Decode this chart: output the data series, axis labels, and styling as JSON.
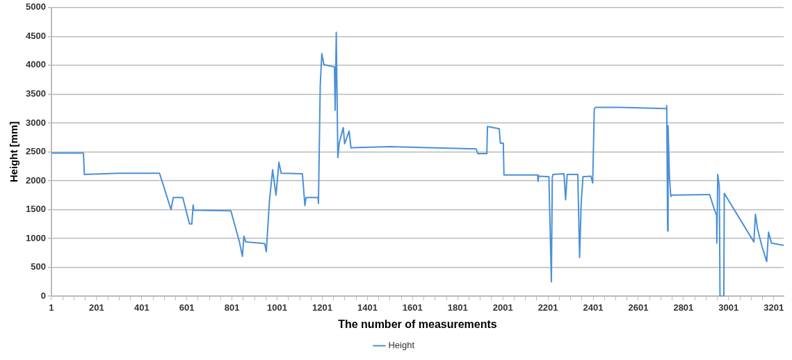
{
  "chart_data": {
    "type": "line",
    "xlabel": "The number of measurements",
    "ylabel": "Height [mm]",
    "xlim": [
      1,
      3245
    ],
    "xticks": [
      1,
      {
        "value": 51,
        "label": null
      },
      {
        "value": 101,
        "label": null
      },
      {
        "value": 151,
        "label": null
      },
      201,
      {
        "value": 251,
        "label": null
      },
      {
        "value": 301,
        "label": null
      },
      {
        "value": 351,
        "label": null
      },
      401,
      {
        "value": 451,
        "label": null
      },
      {
        "value": 501,
        "label": null
      },
      {
        "value": 551,
        "label": null
      },
      601,
      {
        "value": 651,
        "label": null
      },
      {
        "value": 701,
        "label": null
      },
      {
        "value": 751,
        "label": null
      },
      801,
      {
        "value": 851,
        "label": null
      },
      {
        "value": 901,
        "label": null
      },
      {
        "value": 951,
        "label": null
      },
      1001,
      {
        "value": 1051,
        "label": null
      },
      {
        "value": 1101,
        "label": null
      },
      {
        "value": 1151,
        "label": null
      },
      1201,
      {
        "value": 1251,
        "label": null
      },
      {
        "value": 1301,
        "label": null
      },
      {
        "value": 1351,
        "label": null
      },
      1401,
      {
        "value": 1451,
        "label": null
      },
      {
        "value": 1501,
        "label": null
      },
      {
        "value": 1551,
        "label": null
      },
      1601,
      {
        "value": 1651,
        "label": null
      },
      {
        "value": 1701,
        "label": null
      },
      {
        "value": 1751,
        "label": null
      },
      1801,
      {
        "value": 1851,
        "label": null
      },
      {
        "value": 1901,
        "label": null
      },
      {
        "value": 1951,
        "label": null
      },
      2001,
      {
        "value": 2051,
        "label": null
      },
      {
        "value": 2101,
        "label": null
      },
      {
        "value": 2151,
        "label": null
      },
      2201,
      {
        "value": 2251,
        "label": null
      },
      {
        "value": 2301,
        "label": null
      },
      {
        "value": 2351,
        "label": null
      },
      2401,
      {
        "value": 2451,
        "label": null
      },
      {
        "value": 2501,
        "label": null
      },
      {
        "value": 2551,
        "label": null
      },
      2601,
      {
        "value": 2651,
        "label": null
      },
      {
        "value": 2701,
        "label": null
      },
      {
        "value": 2751,
        "label": null
      },
      2801,
      {
        "value": 2851,
        "label": null
      },
      {
        "value": 2901,
        "label": null
      },
      {
        "value": 2951,
        "label": null
      },
      3001,
      {
        "value": 3051,
        "label": null
      },
      {
        "value": 3101,
        "label": null
      },
      {
        "value": 3151,
        "label": null
      },
      3201
    ],
    "ylim": [
      0,
      5000
    ],
    "yticks": [
      0,
      500,
      1000,
      1500,
      2000,
      2500,
      3000,
      3500,
      4000,
      4500,
      5000
    ],
    "grid": "y",
    "legend": "bottom",
    "marker": "none",
    "line_style": "solid",
    "series": [
      {
        "name": "Height",
        "color": "#4a90d9",
        "x": [
          1,
          143,
          147,
          300,
          480,
          531,
          541,
          583,
          613,
          623,
          629,
          632,
          796,
          834,
          847,
          854,
          862,
          946,
          953,
          967,
          981,
          996,
          1009,
          1019,
          1113,
          1124,
          1129,
          1182,
          1184,
          1192,
          1199,
          1208,
          1255,
          1258,
          1263,
          1270,
          1276,
          1294,
          1300,
          1320,
          1328,
          1500,
          1700,
          1883,
          1890,
          1930,
          1933,
          1985,
          1990,
          2003,
          2006,
          2155,
          2157,
          2160,
          2205,
          2216,
          2220,
          2223,
          2272,
          2279,
          2286,
          2333,
          2341,
          2348,
          2356,
          2391,
          2399,
          2406,
          2411,
          2521,
          2725,
          2727,
          2731,
          2733,
          2739,
          2745,
          2750,
          2917,
          2940,
          2948,
          2949,
          2953,
          2960,
          2963,
          2980,
          2982,
          3113,
          3120,
          3129,
          3149,
          3170,
          3178,
          3191,
          3245
        ],
        "values": [
          2480,
          2480,
          2110,
          2130,
          2130,
          1500,
          1710,
          1710,
          1250,
          1250,
          1580,
          1490,
          1480,
          940,
          690,
          1040,
          940,
          910,
          770,
          1650,
          2190,
          1750,
          2320,
          2130,
          2120,
          1570,
          1710,
          1710,
          1610,
          3650,
          4200,
          4010,
          3970,
          3220,
          4570,
          2400,
          2650,
          2920,
          2640,
          2860,
          2570,
          2590,
          2570,
          2550,
          2470,
          2470,
          2940,
          2900,
          2650,
          2650,
          2100,
          2100,
          1990,
          2080,
          2070,
          250,
          2050,
          2110,
          2120,
          1670,
          2110,
          2110,
          670,
          1610,
          2070,
          2080,
          1960,
          3240,
          3270,
          3270,
          3250,
          3300,
          1130,
          2950,
          2070,
          1730,
          1750,
          1760,
          1480,
          1400,
          920,
          2110,
          1900,
          0,
          0,
          1780,
          940,
          1420,
          1170,
          860,
          600,
          1110,
          920,
          880
        ]
      }
    ]
  }
}
